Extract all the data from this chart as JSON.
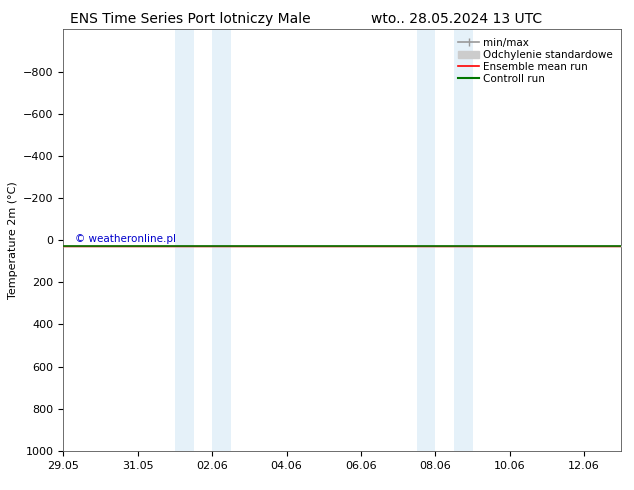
{
  "title_left": "ENS Time Series Port lotniczy Male",
  "title_right": "wto.. 28.05.2024 13 UTC",
  "ylabel": "Temperature 2m (°C)",
  "ylim_bottom": 1000,
  "ylim_top": -1000,
  "yticks": [
    -800,
    -600,
    -400,
    -200,
    0,
    200,
    400,
    600,
    800,
    1000
  ],
  "total_days": 15,
  "xtick_labels": [
    "29.05",
    "31.05",
    "02.06",
    "04.06",
    "06.06",
    "08.06",
    "10.06",
    "12.06"
  ],
  "xtick_positions": [
    0,
    2,
    4,
    6,
    8,
    10,
    12,
    14
  ],
  "blue_bands": [
    [
      3.0,
      3.5
    ],
    [
      4.0,
      4.5
    ],
    [
      9.5,
      10.0
    ],
    [
      10.5,
      11.0
    ]
  ],
  "data_y": 28.0,
  "control_y": 28.3,
  "watermark": "© weatheronline.pl",
  "watermark_color": "#0000cc",
  "legend_labels": [
    "min/max",
    "Odchylenie standardowe",
    "Ensemble mean run",
    "Controll run"
  ],
  "legend_colors": [
    "#999999",
    "#cccccc",
    "#ff0000",
    "#007700"
  ],
  "bg_color": "#ffffff",
  "band_color": "#cce5f5",
  "band_alpha": 0.5,
  "title_fontsize": 10,
  "tick_fontsize": 8,
  "ylabel_fontsize": 8,
  "legend_fontsize": 7.5
}
